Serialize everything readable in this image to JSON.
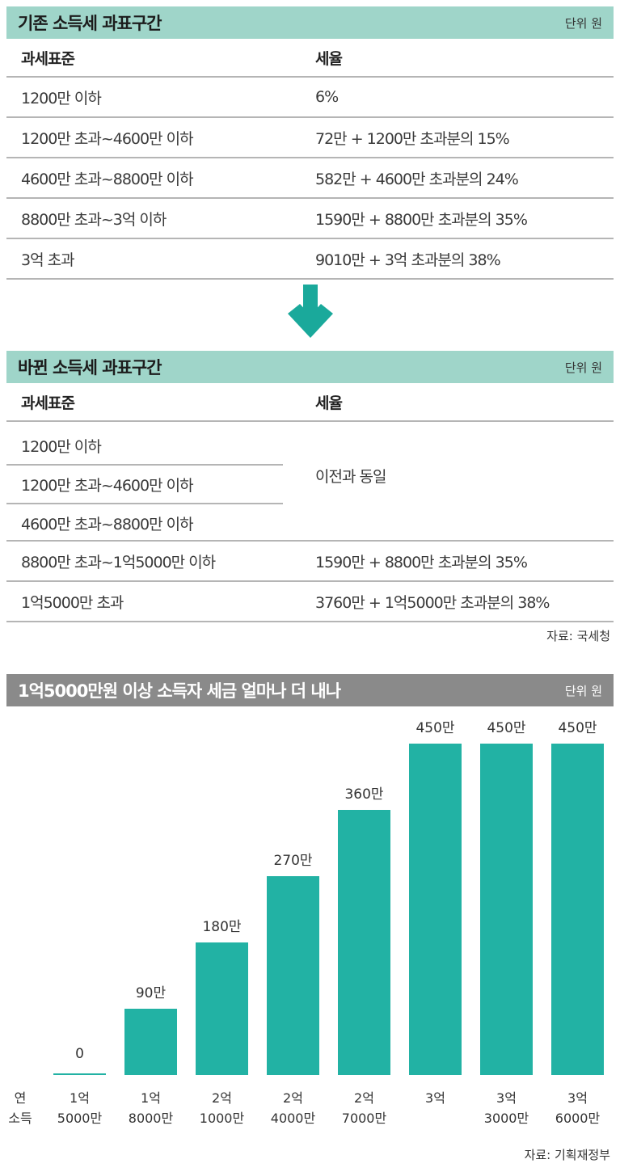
{
  "old_table": {
    "title": "기존 소득세 과표구간",
    "unit": "단위 원",
    "headers": [
      "과세표준",
      "세율"
    ],
    "rows": [
      [
        "1200만 이하",
        "6%"
      ],
      [
        "1200만 초과~4600만 이하",
        "72만 + 1200만 초과분의 15%"
      ],
      [
        "4600만 초과~8800만 이하",
        "582만 + 4600만 초과분의 24%"
      ],
      [
        "8800만 초과~3억 이하",
        "1590만 + 8800만 초과분의 35%"
      ],
      [
        "3억 초과",
        "9010만 + 3억 초과분의 38%"
      ]
    ]
  },
  "arrow_icon": "down-arrow-icon",
  "new_table": {
    "title": "바뀐 소득세 과표구간",
    "unit": "단위 원",
    "headers": [
      "과세표준",
      "세율"
    ],
    "merged_rows": [
      "1200만 이하",
      "1200만 초과~4600만 이하",
      "4600만 초과~8800만 이하"
    ],
    "merged_rate": "이전과 동일",
    "rows": [
      [
        "8800만 초과~1억5000만 이하",
        "1590만 + 8800만 초과분의 35%"
      ],
      [
        "1억5000만 초과",
        "3760만 + 1억5000만 초과분의 38%"
      ]
    ],
    "source": "자료: 국세청"
  },
  "chart_header": {
    "title": "1억5000만원 이상 소득자 세금 얼마나 더 내나",
    "unit": "단위 원"
  },
  "chart_data": {
    "type": "bar",
    "title": "1억5000만원 이상 소득자 세금 얼마나 더 내나",
    "xlabel": "연 소득",
    "x_axis_label_lines": [
      "연",
      "소득"
    ],
    "ylabel": "",
    "unit": "원",
    "categories": [
      "1억 5000만",
      "1억 8000만",
      "2억 1000만",
      "2억 4000만",
      "2억 7000만",
      "3억",
      "3억 3000만",
      "3억 6000만"
    ],
    "category_lines": [
      [
        "1억",
        "5000만"
      ],
      [
        "1억",
        "8000만"
      ],
      [
        "2억",
        "1000만"
      ],
      [
        "2억",
        "4000만"
      ],
      [
        "2억",
        "7000만"
      ],
      [
        "3억",
        ""
      ],
      [
        "3억",
        "3000만"
      ],
      [
        "3억",
        "6000만"
      ]
    ],
    "values": [
      0,
      900000,
      1800000,
      2700000,
      3600000,
      4500000,
      4500000,
      4500000
    ],
    "value_labels": [
      "0",
      "90만",
      "180만",
      "270만",
      "360만",
      "450만",
      "450만",
      "450만"
    ],
    "ylim": [
      0,
      4500000
    ],
    "color": "#22b2a4",
    "grid": false,
    "source": "자료: 기획재정부"
  }
}
